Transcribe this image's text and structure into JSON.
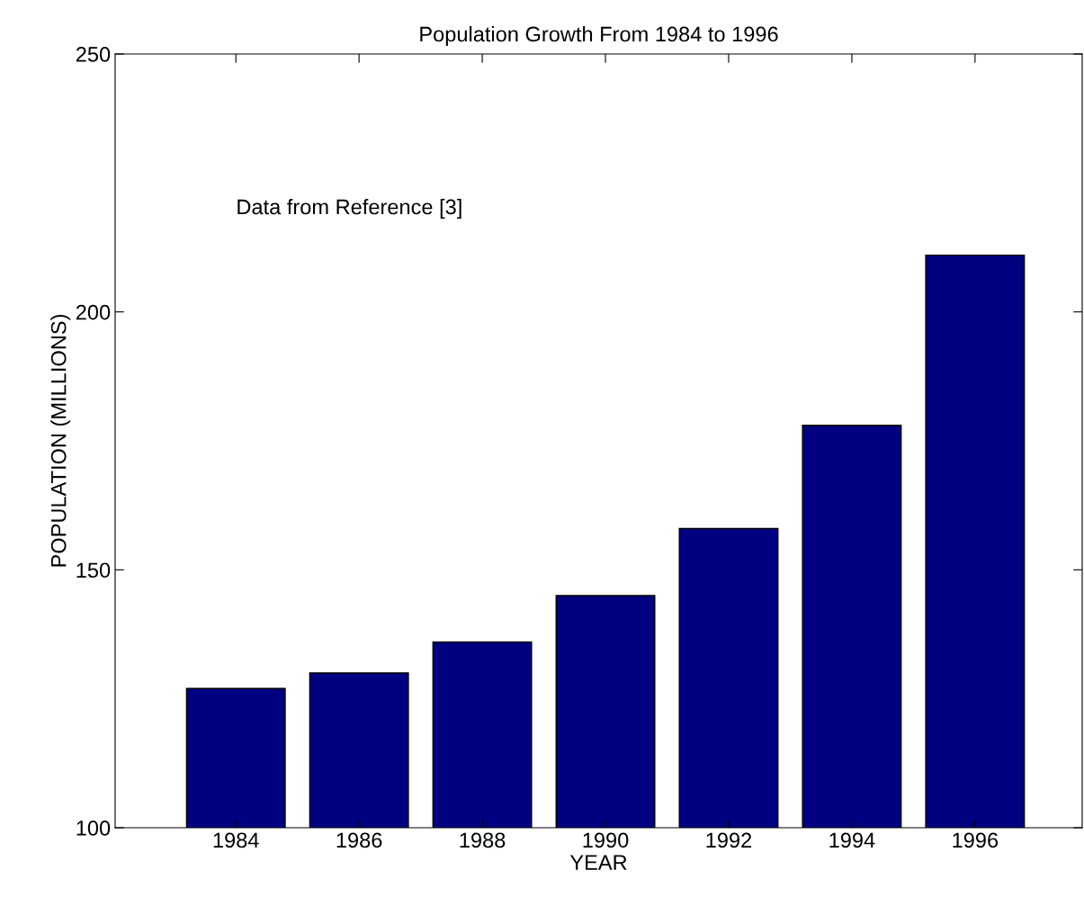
{
  "chart_data": {
    "type": "bar",
    "title": "Population Growth From 1984 to 1996",
    "xlabel": "YEAR",
    "ylabel": "POPULATION (MILLIONS)",
    "categories": [
      "1984",
      "1986",
      "1988",
      "1990",
      "1992",
      "1994",
      "1996"
    ],
    "values": [
      127,
      130,
      136,
      145,
      158,
      178,
      211
    ],
    "color": "#000080",
    "ylim": [
      100,
      250
    ],
    "yticks": [
      100,
      150,
      200,
      250
    ],
    "annotations": [
      "Data from Reference [3]"
    ],
    "grid": false,
    "legend": false
  }
}
